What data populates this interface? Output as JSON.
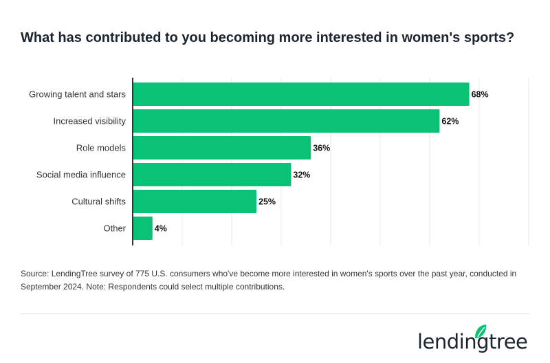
{
  "title": "What has contributed to you becoming more interested in women's sports?",
  "chart_data": {
    "type": "bar",
    "orientation": "horizontal",
    "categories": [
      "Growing talent and stars",
      "Increased visibility",
      "Role models",
      "Social media influence",
      "Cultural shifts",
      "Other"
    ],
    "values": [
      68,
      62,
      36,
      32,
      25,
      4
    ],
    "data_labels": [
      "68%",
      "62%",
      "36%",
      "32%",
      "25%",
      "4%"
    ],
    "xlim": [
      0,
      80
    ],
    "grid": true,
    "bar_color": "#0ac276",
    "unit": "%"
  },
  "source": "Source: LendingTree survey of 775 U.S. consumers who've become more interested in women's sports over the past year, conducted in September 2024. Note: Respondents could select multiple contributions.",
  "logo": {
    "text": "lendingtree",
    "color": "#1b2430",
    "leaf_color": "#0ac276"
  }
}
